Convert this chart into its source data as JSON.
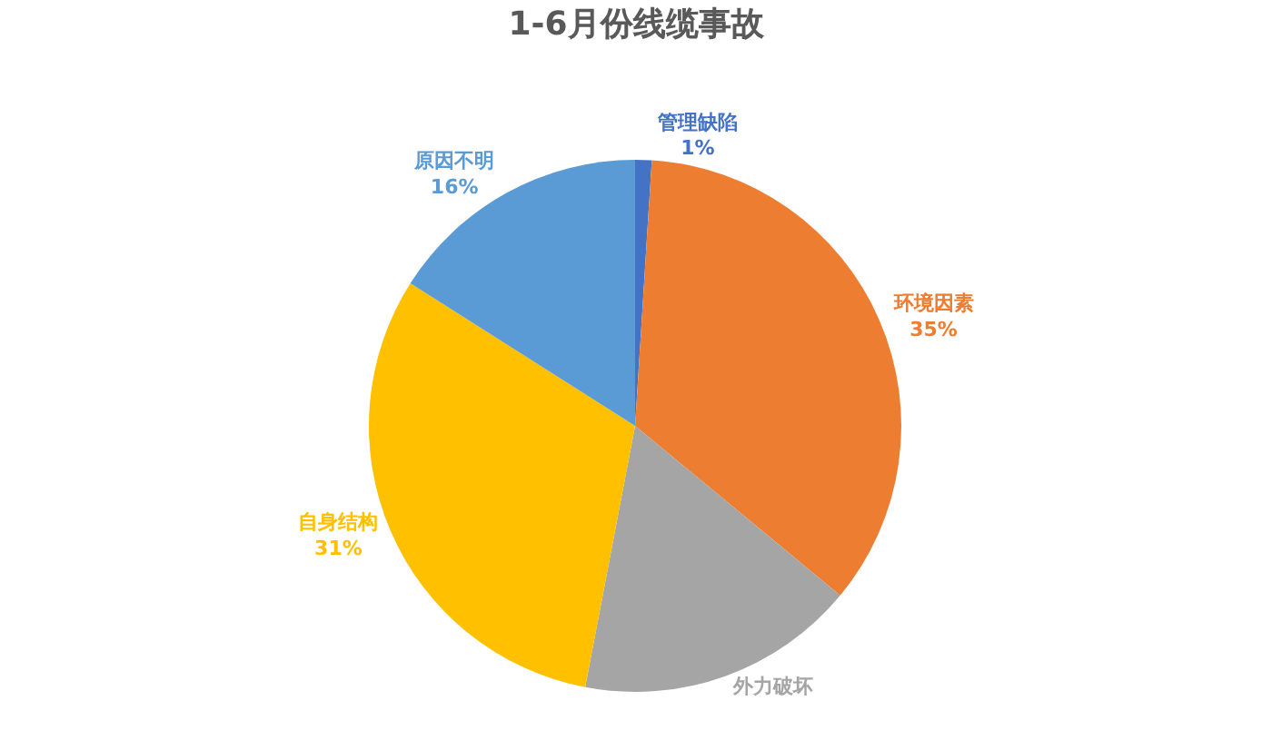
{
  "chart_data": {
    "type": "pie",
    "title": "1-6月份线缆事故",
    "categories": [
      "管理缺陷",
      "环境因素",
      "外力破坏",
      "自身结构",
      "原因不明"
    ],
    "values": [
      1,
      35,
      17,
      31,
      16
    ],
    "value_labels": [
      "1%",
      "35%",
      null,
      "31%",
      "16%"
    ],
    "colors": [
      "#4472c4",
      "#ed7d31",
      "#a5a5a5",
      "#ffc000",
      "#5b9bd5"
    ],
    "legend": false
  }
}
